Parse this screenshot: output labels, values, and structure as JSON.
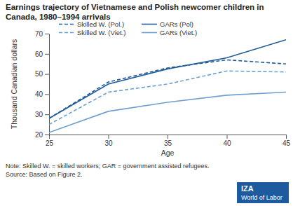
{
  "chart_data": {
    "type": "line",
    "title": "Earnings trajectory of Vietnamese and Polish newcomer children in Canada, 1980–1994 arrivals",
    "x_label": "Age",
    "y_label": "Thousand Canadian dollars",
    "x": [
      25,
      30,
      35,
      40,
      45
    ],
    "series": [
      {
        "name": "Skilled W. (Pol.)",
        "color": "#1f5c99",
        "line_style": "dashed",
        "values": [
          28,
          46,
          53,
          57,
          55
        ]
      },
      {
        "name": "GARs (Pol)",
        "color": "#1f5c99",
        "line_style": "solid",
        "values": [
          28,
          45,
          52.5,
          58,
          67
        ]
      },
      {
        "name": "Skilled W. (Viet.)",
        "color": "#6d9fd1",
        "line_style": "dashed",
        "values": [
          25,
          41,
          45,
          51.5,
          51
        ]
      },
      {
        "name": "GARs (Viet.)",
        "color": "#6d9fd1",
        "line_style": "solid",
        "values": [
          21,
          31.5,
          36,
          39.5,
          41
        ]
      }
    ],
    "xlim": [
      25,
      45
    ],
    "xticks": [
      25,
      30,
      35,
      40,
      45
    ],
    "ylim": [
      20,
      70
    ],
    "yticks": [
      20,
      30,
      40,
      50,
      60,
      70
    ],
    "grid": false,
    "legend": "top-left",
    "note": "Note: Skilled W. = skilled workers; GAR = government assisted refugees.",
    "source": "Source: Based on Figure 2.",
    "logo": {
      "name": "IZA",
      "subtitle": "World of Labor"
    }
  }
}
